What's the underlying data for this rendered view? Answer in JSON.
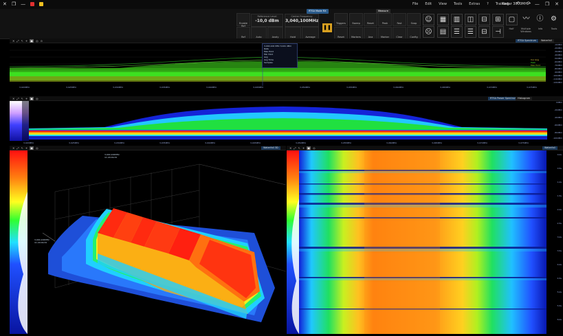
{
  "titlebar": {
    "close_glyph": "✕",
    "restore_glyph": "❐",
    "minimize_glyph": "—",
    "menus": [
      "File",
      "Edit",
      "View",
      "Tools",
      "Extras",
      "?",
      "Training"
    ],
    "undo_glyph": "↶",
    "redo_glyph": "↷",
    "app_title": "Radar 3000MHz",
    "win_min": "—",
    "win_max": "❐",
    "win_close": "✕"
  },
  "toolbar": {
    "center_freq": {
      "caption": "Center Frequency",
      "value": "3,040,100MHz"
    },
    "ref_level": {
      "caption": "Reference Level",
      "value": "-10,0 dBm"
    },
    "mode_tab": "RTSA Mode RX",
    "measure_tab": "Measure",
    "pause_glyph": "❚❚",
    "small_buttons": [
      "Enable Ref",
      "Ref",
      "Auto",
      "Analy",
      "Hold",
      "Average",
      "Triggers",
      "Reset",
      "Sweep",
      "Reset",
      "Peak",
      "Fast",
      "Snap",
      "Markers",
      "Ana Markers",
      "Marker",
      "Clear",
      "Config",
      "Reset",
      "Smart",
      "Setup",
      "Settings"
    ],
    "group_labels": [
      "Setup",
      "Markers",
      "Hold",
      "Marker"
    ],
    "right_icons": [
      {
        "glyph": "☺",
        "label": "Smile"
      },
      {
        "glyph": "▦",
        "label": "Table"
      },
      {
        "glyph": "▥",
        "label": "Grid"
      },
      {
        "glyph": "◫",
        "label": "Split"
      },
      {
        "glyph": "⊟",
        "label": "Layout"
      },
      {
        "glyph": "▢",
        "label": "Panel"
      },
      {
        "glyph": "〰",
        "label": "Signal"
      },
      {
        "glyph": "ⓘ",
        "label": "Info"
      },
      {
        "glyph": "⚙",
        "label": "Settings"
      }
    ],
    "right_icon_captions": [
      "Delay",
      "Columns",
      "Rows",
      "Full",
      "Fill",
      "Half",
      "Multiple Windows",
      "Info",
      "Tools"
    ]
  },
  "panel1": {
    "tab": "RTSA Spectrum",
    "tab2": "Waterfall",
    "marker_box": [
      "3,040,100 MHz 3,041 dBm",
      "Rate",
      "Max Hold",
      "Min Hold",
      "Avg",
      "Avg Time",
      "Samples",
      "Peak",
      "Start"
    ],
    "freq_labels": [
      "3,020MHz",
      "3,025MHz",
      "3,030MHz",
      "3,035MHz",
      "3,040MHz",
      "3,045MHz",
      "3,050MHz",
      "3,055MHz",
      "3,060MHz",
      "3,065MHz",
      "3,070MHz",
      "3,075MHz"
    ],
    "legend": [
      "Cur Avg",
      "Peak",
      "Max Hold"
    ],
    "y_labels": [
      "-10dBm",
      "-20dBm",
      "-30dBm",
      "-40dBm",
      "-50dBm",
      "-60dBm",
      "-70dBm",
      "-80dBm",
      "-90dBm",
      "-100dBm",
      "-110dBm",
      "-120dBm"
    ]
  },
  "panel2": {
    "tab": "RTSA Power Spectrum",
    "tab2": "Histogram",
    "freq_labels": [
      "3,020MHz",
      "3,025MHz",
      "3,030MHz",
      "3,035MHz",
      "3,040MHz",
      "3,045MHz",
      "3,050MHz",
      "3,055MHz",
      "3,060MHz",
      "3,065MHz",
      "3,070MHz",
      "3,075MHz"
    ],
    "y_labels": [
      "0dBm",
      "-20dBm",
      "-40dBm",
      "-60dBm",
      "-80dBm",
      "-100dBm"
    ]
  },
  "panel3": {
    "tab": "Waterfall 3D",
    "marker_text": [
      "3,040,100MHz",
      "11:20:09.32"
    ]
  },
  "panel4": {
    "tab": "Waterfall",
    "time_labels": [
      "0,0s",
      "0,5s",
      "1,0s",
      "1,5s",
      "2,0s",
      "2,5s",
      "3,0s",
      "3,5s",
      "4,0s",
      "4,5s",
      "5,0s",
      "5,5s",
      "6,0s"
    ]
  },
  "colors": {
    "accent": "#2a5a8a",
    "pause": "#d8a020",
    "spectrum_green": "#39e020",
    "background": "#000000"
  }
}
